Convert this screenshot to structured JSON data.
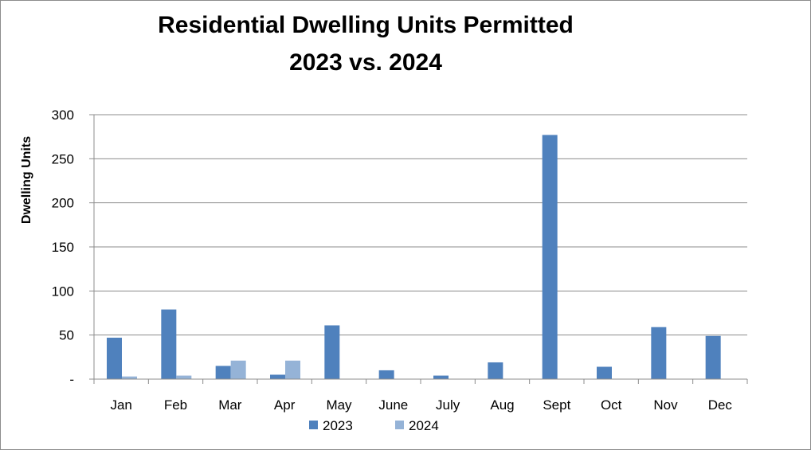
{
  "chart_data": {
    "type": "bar",
    "title_lines": [
      "Residential Dwelling Units Permitted",
      "2023 vs. 2024"
    ],
    "ylabel": "Dwelling Units",
    "xlabel": "",
    "ylim": [
      0,
      300
    ],
    "yticks": [
      0,
      50,
      100,
      150,
      200,
      250,
      300
    ],
    "ytick_labels": [
      "-",
      "50",
      "100",
      "150",
      "200",
      "250",
      "300"
    ],
    "grid": true,
    "legend_position": "bottom",
    "categories": [
      "Jan",
      "Feb",
      "Mar",
      "Apr",
      "May",
      "June",
      "July",
      "Aug",
      "Sept",
      "Oct",
      "Nov",
      "Dec"
    ],
    "series": [
      {
        "name": "2023",
        "color": "#4f81bd",
        "values": [
          47,
          79,
          15,
          5,
          61,
          10,
          4,
          19,
          277,
          14,
          59,
          49
        ]
      },
      {
        "name": "2024",
        "color": "#95b3d7",
        "values": [
          3,
          4,
          21,
          21,
          0,
          0,
          0,
          0,
          0,
          0,
          0,
          0
        ]
      }
    ]
  }
}
